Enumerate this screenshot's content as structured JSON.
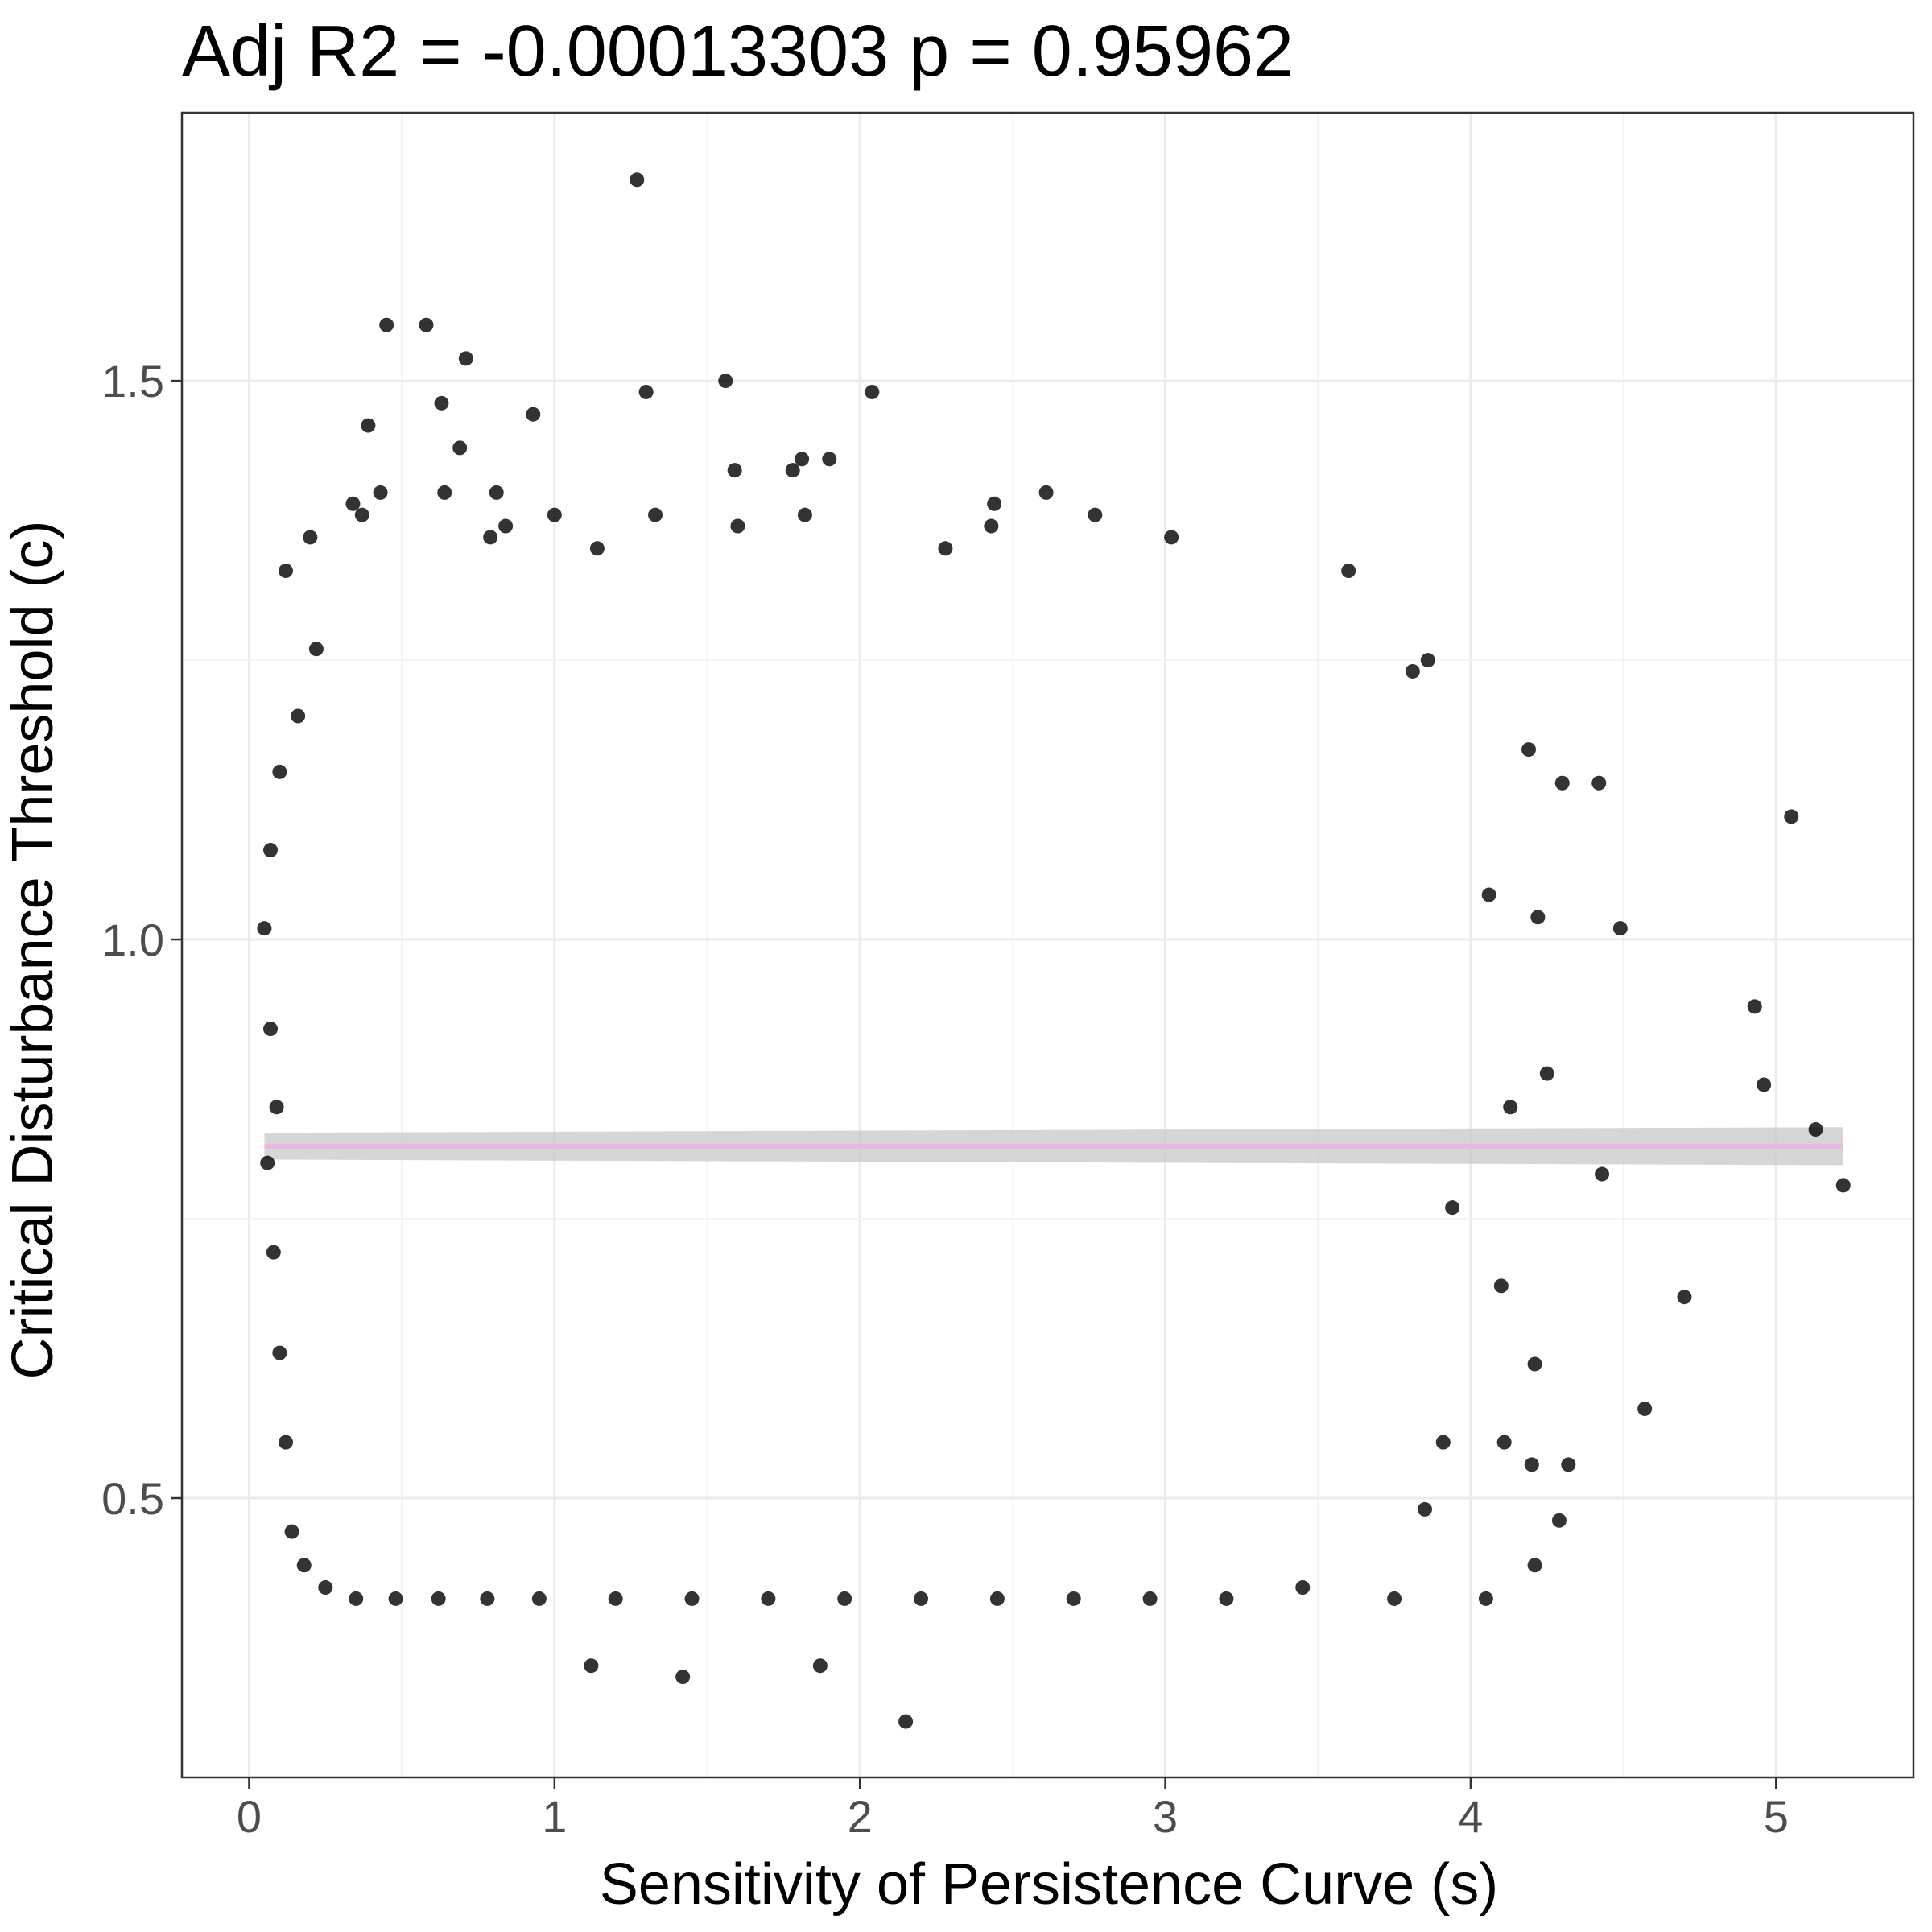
{
  "chart_data": {
    "type": "scatter",
    "title": "Adj R2 =  -0.00013303  p = 0.95962",
    "xlabel": "Sensitivity of Persistence Curve (s)",
    "ylabel": "Critical Disturbance Threshold (c)",
    "xlim": [
      -0.22,
      5.45
    ],
    "ylim": [
      0.25,
      1.74
    ],
    "x_ticks": [
      0,
      1,
      2,
      3,
      4,
      5
    ],
    "x_tick_labels": [
      "0",
      "1",
      "2",
      "3",
      "4",
      "5"
    ],
    "y_ticks": [
      0.5,
      1.0,
      1.5
    ],
    "y_tick_labels": [
      "0.5",
      "1.0",
      "1.5"
    ],
    "grid": true,
    "legend": "none",
    "point_color": "#000000",
    "regression": {
      "x": [
        0.05,
        5.22
      ],
      "y": [
        0.815,
        0.815
      ],
      "ci_lower": [
        0.803,
        0.798
      ],
      "ci_upper": [
        0.827,
        0.832
      ],
      "line_color": "#e8b8e0",
      "band_color": "#c8c8c8"
    },
    "points": [
      [
        1.27,
        1.68
      ],
      [
        0.45,
        1.55
      ],
      [
        0.58,
        1.55
      ],
      [
        0.71,
        1.52
      ],
      [
        1.56,
        1.5
      ],
      [
        1.3,
        1.49
      ],
      [
        2.04,
        1.49
      ],
      [
        0.63,
        1.48
      ],
      [
        0.93,
        1.47
      ],
      [
        0.39,
        1.46
      ],
      [
        0.69,
        1.44
      ],
      [
        1.81,
        1.43
      ],
      [
        1.59,
        1.42
      ],
      [
        1.78,
        1.42
      ],
      [
        1.9,
        1.43
      ],
      [
        2.61,
        1.4
      ],
      [
        0.64,
        1.4
      ],
      [
        0.81,
        1.4
      ],
      [
        0.34,
        1.39
      ],
      [
        0.43,
        1.4
      ],
      [
        2.44,
        1.39
      ],
      [
        1.33,
        1.38
      ],
      [
        0.37,
        1.38
      ],
      [
        1.0,
        1.38
      ],
      [
        0.84,
        1.37
      ],
      [
        1.82,
        1.38
      ],
      [
        2.77,
        1.38
      ],
      [
        1.6,
        1.37
      ],
      [
        2.43,
        1.37
      ],
      [
        0.2,
        1.36
      ],
      [
        0.79,
        1.36
      ],
      [
        3.02,
        1.36
      ],
      [
        2.28,
        1.35
      ],
      [
        1.14,
        1.35
      ],
      [
        3.6,
        1.33
      ],
      [
        0.12,
        1.33
      ],
      [
        4.42,
        1.14
      ],
      [
        5.05,
        1.11
      ],
      [
        4.49,
        1.01
      ],
      [
        4.93,
        0.94
      ],
      [
        4.96,
        0.87
      ],
      [
        4.7,
        0.68
      ],
      [
        4.57,
        0.58
      ],
      [
        5.22,
        0.78
      ],
      [
        5.13,
        0.83
      ],
      [
        4.43,
        0.79
      ],
      [
        1.12,
        0.35
      ],
      [
        1.87,
        0.35
      ],
      [
        1.42,
        0.34
      ],
      [
        2.15,
        0.3
      ],
      [
        3.75,
        0.41
      ],
      [
        4.05,
        0.41
      ],
      [
        4.21,
        0.44
      ],
      [
        4.29,
        0.48
      ],
      [
        3.85,
        0.49
      ],
      [
        3.81,
        1.24
      ],
      [
        3.86,
        1.25
      ],
      [
        4.19,
        1.17
      ],
      [
        4.3,
        1.14
      ],
      [
        4.06,
        1.04
      ],
      [
        4.22,
        1.02
      ],
      [
        4.13,
        0.85
      ],
      [
        4.25,
        0.88
      ],
      [
        3.94,
        0.76
      ],
      [
        4.1,
        0.69
      ],
      [
        4.21,
        0.62
      ],
      [
        4.11,
        0.55
      ],
      [
        4.2,
        0.53
      ],
      [
        4.32,
        0.53
      ],
      [
        3.91,
        0.55
      ],
      [
        0.05,
        1.01
      ],
      [
        0.07,
        0.92
      ],
      [
        0.09,
        0.85
      ],
      [
        0.06,
        0.8
      ],
      [
        0.08,
        0.72
      ],
      [
        0.1,
        0.63
      ],
      [
        0.12,
        0.55
      ],
      [
        0.14,
        0.47
      ],
      [
        0.18,
        0.44
      ],
      [
        0.25,
        0.42
      ],
      [
        0.35,
        0.41
      ],
      [
        0.48,
        0.41
      ],
      [
        0.62,
        0.41
      ],
      [
        0.78,
        0.41
      ],
      [
        0.95,
        0.41
      ],
      [
        1.2,
        0.41
      ],
      [
        1.45,
        0.41
      ],
      [
        1.7,
        0.41
      ],
      [
        1.95,
        0.41
      ],
      [
        2.2,
        0.41
      ],
      [
        2.45,
        0.41
      ],
      [
        2.7,
        0.41
      ],
      [
        2.95,
        0.41
      ],
      [
        3.2,
        0.41
      ],
      [
        3.45,
        0.42
      ],
      [
        0.07,
        1.08
      ],
      [
        0.1,
        1.15
      ],
      [
        0.16,
        1.2
      ],
      [
        0.22,
        1.26
      ]
    ]
  }
}
